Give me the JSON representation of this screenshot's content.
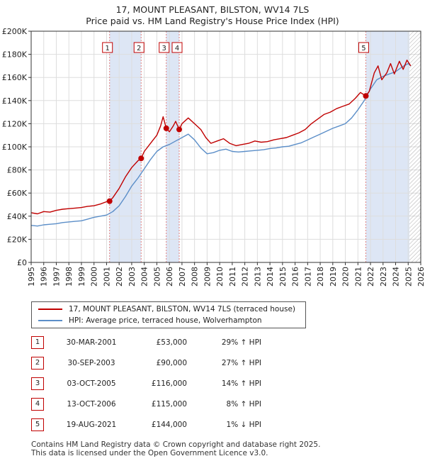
{
  "title_line1": "17, MOUNT PLEASANT, BILSTON, WV14 7LS",
  "title_line2": "Price paid vs. HM Land Registry's House Price Index (HPI)",
  "colors": {
    "property": "#c00000",
    "hpi": "#5b8ec8",
    "shade": "#dde6f5",
    "grid": "#dddddd",
    "marker_line": "#e08080",
    "hatch": "#888888"
  },
  "legend": {
    "property": "17, MOUNT PLEASANT, BILSTON, WV14 7LS (terraced house)",
    "hpi": "HPI: Average price, terraced house, Wolverhampton"
  },
  "chart_data": {
    "type": "line",
    "title": "17, MOUNT PLEASANT, BILSTON, WV14 7LS — Price paid vs. HM Land Registry's House Price Index (HPI)",
    "xlim": [
      1995,
      2026
    ],
    "ylim": [
      0,
      200000
    ],
    "x_ticks": [
      1995,
      1996,
      1997,
      1998,
      1999,
      2000,
      2001,
      2002,
      2003,
      2004,
      2005,
      2006,
      2007,
      2008,
      2009,
      2010,
      2011,
      2012,
      2013,
      2014,
      2015,
      2016,
      2017,
      2018,
      2019,
      2020,
      2021,
      2022,
      2023,
      2024,
      2025,
      2026
    ],
    "y_ticks": [
      0,
      20000,
      40000,
      60000,
      80000,
      100000,
      120000,
      140000,
      160000,
      180000,
      200000
    ],
    "y_tick_labels": [
      "£0",
      "£20K",
      "£40K",
      "£60K",
      "£80K",
      "£100K",
      "£120K",
      "£140K",
      "£160K",
      "£180K",
      "£200K"
    ],
    "grid": true,
    "legend_position": "below",
    "future_hatch_from": 2025.1,
    "series": [
      {
        "name": "17, MOUNT PLEASANT, BILSTON, WV14 7LS (terraced house)",
        "x": [
          1995.0,
          1995.5,
          1996.0,
          1996.5,
          1997.0,
          1997.5,
          1998.0,
          1998.5,
          1999.0,
          1999.5,
          2000.0,
          2000.5,
          2001.0,
          2001.24,
          2001.5,
          2002.0,
          2002.5,
          2003.0,
          2003.5,
          2003.75,
          2004.0,
          2004.5,
          2005.0,
          2005.3,
          2005.5,
          2005.75,
          2006.0,
          2006.3,
          2006.5,
          2006.78,
          2007.0,
          2007.5,
          2008.0,
          2008.5,
          2008.9,
          2009.3,
          2009.8,
          2010.3,
          2010.8,
          2011.3,
          2011.8,
          2012.3,
          2012.8,
          2013.3,
          2013.8,
          2014.3,
          2014.8,
          2015.3,
          2015.8,
          2016.3,
          2016.8,
          2017.3,
          2017.8,
          2018.3,
          2018.8,
          2019.3,
          2019.8,
          2020.3,
          2020.8,
          2021.2,
          2021.63,
          2021.9,
          2022.3,
          2022.6,
          2022.9,
          2023.3,
          2023.6,
          2023.9,
          2024.3,
          2024.6,
          2024.9,
          2025.2
        ],
        "values": [
          43000,
          42000,
          44000,
          43500,
          45000,
          46000,
          46500,
          47000,
          47500,
          48500,
          49000,
          50500,
          52500,
          53000,
          56000,
          64000,
          74000,
          82000,
          88000,
          90000,
          96000,
          103000,
          110000,
          118000,
          126000,
          116000,
          113000,
          118000,
          122000,
          115000,
          120000,
          125000,
          120000,
          115000,
          108000,
          103000,
          105000,
          107000,
          103000,
          101000,
          102000,
          103000,
          105000,
          104000,
          104500,
          106000,
          107000,
          108000,
          110000,
          112000,
          115000,
          120000,
          124000,
          128000,
          130000,
          133000,
          135000,
          137000,
          142000,
          147000,
          144000,
          148000,
          164000,
          170000,
          158000,
          164000,
          172000,
          163000,
          174000,
          167000,
          175000,
          170000
        ]
      },
      {
        "name": "HPI: Average price, terraced house, Wolverhampton",
        "x": [
          1995.0,
          1995.5,
          1996.0,
          1996.5,
          1997.0,
          1997.5,
          1998.0,
          1998.5,
          1999.0,
          1999.5,
          2000.0,
          2000.5,
          2001.0,
          2001.5,
          2002.0,
          2002.5,
          2003.0,
          2003.5,
          2004.0,
          2004.5,
          2005.0,
          2005.5,
          2006.0,
          2006.5,
          2007.0,
          2007.5,
          2008.0,
          2008.5,
          2009.0,
          2009.5,
          2010.0,
          2010.5,
          2011.0,
          2011.5,
          2012.0,
          2012.5,
          2013.0,
          2013.5,
          2014.0,
          2014.5,
          2015.0,
          2015.5,
          2016.0,
          2016.5,
          2017.0,
          2017.5,
          2018.0,
          2018.5,
          2019.0,
          2019.5,
          2020.0,
          2020.5,
          2021.0,
          2021.5,
          2022.0,
          2022.5,
          2023.0,
          2023.5,
          2024.0,
          2024.5,
          2025.0,
          2025.2
        ],
        "values": [
          32000,
          31500,
          32500,
          33000,
          33500,
          34500,
          35000,
          35500,
          36000,
          37500,
          39000,
          40000,
          41000,
          44000,
          49000,
          57000,
          66000,
          73000,
          81000,
          89000,
          96000,
          100000,
          102000,
          105000,
          108000,
          111000,
          106000,
          99000,
          94000,
          95000,
          97000,
          98000,
          96000,
          95500,
          96000,
          96500,
          97000,
          97500,
          98500,
          99000,
          100000,
          100500,
          102000,
          103500,
          106000,
          108500,
          111000,
          113500,
          116000,
          118000,
          120000,
          125000,
          132000,
          140000,
          150000,
          158000,
          161000,
          163000,
          165000,
          169000,
          172000,
          170000
        ]
      }
    ],
    "sales": [
      {
        "num": "1",
        "year": 2001.24,
        "price": 53000
      },
      {
        "num": "2",
        "year": 2003.75,
        "price": 90000
      },
      {
        "num": "3",
        "year": 2005.75,
        "price": 116000
      },
      {
        "num": "4",
        "year": 2006.78,
        "price": 115000
      },
      {
        "num": "5",
        "year": 2021.63,
        "price": 144000
      }
    ],
    "shaded_ranges": [
      [
        2001.24,
        2003.75
      ],
      [
        2005.75,
        2006.78
      ],
      [
        2021.63,
        2025.1
      ]
    ]
  },
  "table": [
    {
      "num": "1",
      "date": "30-MAR-2001",
      "price": "£53,000",
      "hpi": "29% ↑ HPI"
    },
    {
      "num": "2",
      "date": "30-SEP-2003",
      "price": "£90,000",
      "hpi": "27% ↑ HPI"
    },
    {
      "num": "3",
      "date": "03-OCT-2005",
      "price": "£116,000",
      "hpi": "14% ↑ HPI"
    },
    {
      "num": "4",
      "date": "13-OCT-2006",
      "price": "£115,000",
      "hpi": "8% ↑ HPI"
    },
    {
      "num": "5",
      "date": "19-AUG-2021",
      "price": "£144,000",
      "hpi": "1% ↓ HPI"
    }
  ],
  "footer": {
    "line1": "Contains HM Land Registry data © Crown copyright and database right 2025.",
    "line2": "This data is licensed under the Open Government Licence v3.0."
  }
}
